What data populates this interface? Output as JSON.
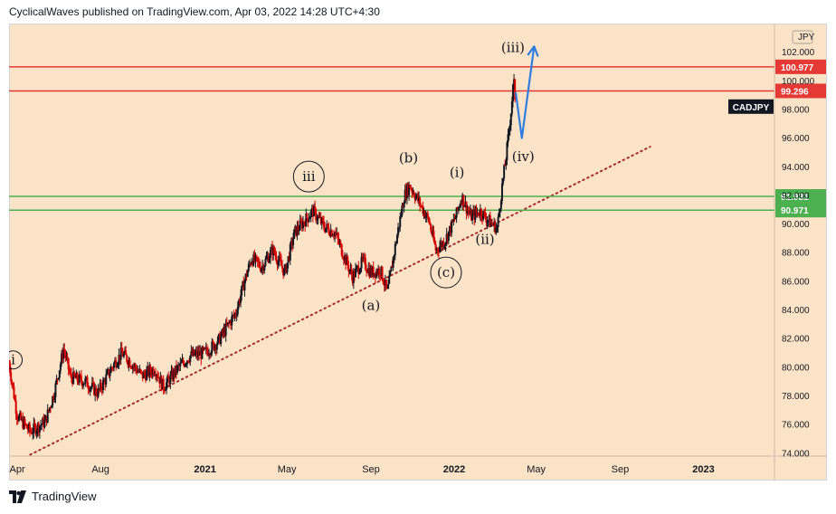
{
  "header": {
    "attribution": "CyclicalWaves published on TradingView.com, Apr 03, 2022 14:28 UTC+4:30"
  },
  "footer": {
    "brand": "TradingView"
  },
  "colors": {
    "background": "#fbe3c7",
    "red_line": "#e53935",
    "green_line": "#4caf50",
    "trend_line": "#a52a2a",
    "projection": "#2f7de1",
    "candle": "#131722",
    "candle_down": "#d50000"
  },
  "chart_data": {
    "type": "candlestick",
    "symbol": "CADJPY",
    "currency": "JPY",
    "y_ticks": [
      74,
      76,
      78,
      80,
      82,
      84,
      86,
      88,
      90,
      92,
      94,
      96,
      98,
      100,
      102
    ],
    "y_tick_labels": [
      "74.000",
      "76.000",
      "78.000",
      "80.000",
      "82.000",
      "84.000",
      "86.000",
      "88.000",
      "90.000",
      "92.000",
      "94.000",
      "96.000",
      "98.000",
      "100.000",
      "102.000"
    ],
    "ylim": [
      73.8,
      104.0
    ],
    "xlim": [
      "2020-03-20",
      "2023-04-15"
    ],
    "x_ticks": [
      {
        "label": "Apr",
        "date": "2020-04-01",
        "bold": false
      },
      {
        "label": "Aug",
        "date": "2020-08-01",
        "bold": false
      },
      {
        "label": "2021",
        "date": "2021-01-01",
        "bold": true
      },
      {
        "label": "May",
        "date": "2021-05-01",
        "bold": false
      },
      {
        "label": "Sep",
        "date": "2021-09-01",
        "bold": false
      },
      {
        "label": "2022",
        "date": "2022-01-01",
        "bold": true
      },
      {
        "label": "May",
        "date": "2022-05-01",
        "bold": false
      },
      {
        "label": "Sep",
        "date": "2022-09-01",
        "bold": false
      },
      {
        "label": "2023",
        "date": "2023-01-01",
        "bold": true
      }
    ],
    "horizontal_levels": [
      {
        "value": 100.977,
        "label": "100.977",
        "color": "#e53935"
      },
      {
        "value": 99.296,
        "label": "99.296",
        "color": "#e53935"
      },
      {
        "value": 91.931,
        "label": "91.931",
        "color": "#4caf50"
      },
      {
        "value": 90.971,
        "label": "90.971",
        "color": "#4caf50"
      }
    ],
    "trend_line": {
      "start": [
        "2020-04-20",
        73.9
      ],
      "end": [
        "2022-10-15",
        95.4
      ],
      "style": "dotted"
    },
    "price_path": [
      [
        "2020-03-20",
        80.3
      ],
      [
        "2020-04-01",
        76.6
      ],
      [
        "2020-04-20",
        75.5
      ],
      [
        "2020-05-12",
        76.2
      ],
      [
        "2020-05-25",
        78.2
      ],
      [
        "2020-06-08",
        81.3
      ],
      [
        "2020-06-18",
        79.3
      ],
      [
        "2020-07-10",
        79.0
      ],
      [
        "2020-07-28",
        78.2
      ],
      [
        "2020-08-20",
        80.2
      ],
      [
        "2020-09-01",
        81.0
      ],
      [
        "2020-09-15",
        80.3
      ],
      [
        "2020-10-01",
        79.4
      ],
      [
        "2020-10-20",
        79.9
      ],
      [
        "2020-11-01",
        78.6
      ],
      [
        "2020-11-20",
        79.8
      ],
      [
        "2020-12-10",
        80.8
      ],
      [
        "2021-01-01",
        81.0
      ],
      [
        "2021-01-20",
        81.8
      ],
      [
        "2021-02-15",
        83.8
      ],
      [
        "2021-03-01",
        86.2
      ],
      [
        "2021-03-10",
        87.6
      ],
      [
        "2021-03-25",
        87.0
      ],
      [
        "2021-04-10",
        88.2
      ],
      [
        "2021-04-28",
        86.6
      ],
      [
        "2021-05-12",
        89.4
      ],
      [
        "2021-05-28",
        90.3
      ],
      [
        "2021-06-08",
        90.9
      ],
      [
        "2021-06-25",
        89.8
      ],
      [
        "2021-07-10",
        89.4
      ],
      [
        "2021-07-25",
        87.6
      ],
      [
        "2021-08-05",
        86.3
      ],
      [
        "2021-08-20",
        87.4
      ],
      [
        "2021-09-01",
        86.6
      ],
      [
        "2021-09-15",
        86.8
      ],
      [
        "2021-09-25",
        85.2
      ],
      [
        "2021-10-10",
        89.4
      ],
      [
        "2021-10-20",
        92.0
      ],
      [
        "2021-10-28",
        92.7
      ],
      [
        "2021-11-12",
        91.4
      ],
      [
        "2021-11-25",
        90.2
      ],
      [
        "2021-12-05",
        88.2
      ],
      [
        "2021-12-18",
        88.8
      ],
      [
        "2022-01-03",
        90.5
      ],
      [
        "2022-01-12",
        91.9
      ],
      [
        "2022-01-25",
        90.5
      ],
      [
        "2022-02-08",
        90.9
      ],
      [
        "2022-02-25",
        90.0
      ],
      [
        "2022-03-05",
        89.7
      ],
      [
        "2022-03-12",
        92.6
      ],
      [
        "2022-03-18",
        94.7
      ],
      [
        "2022-03-25",
        97.8
      ],
      [
        "2022-03-29",
        100.0
      ],
      [
        "2022-04-01",
        98.3
      ]
    ],
    "projection_path": [
      [
        "2022-04-01",
        99.2
      ],
      [
        "2022-04-10",
        96.0
      ],
      [
        "2022-04-28",
        102.4
      ]
    ],
    "wave_labels": [
      {
        "text": "i",
        "date": "2020-03-26",
        "value": 80.2,
        "circled": true
      },
      {
        "text": "iii",
        "date": "2021-06-02",
        "value": 93.0,
        "circled": true
      },
      {
        "text": "(a)",
        "date": "2021-09-01",
        "value": 84.0,
        "circled": false
      },
      {
        "text": "(b)",
        "date": "2021-10-26",
        "value": 94.3,
        "circled": false
      },
      {
        "text": "(c)",
        "date": "2021-12-20",
        "value": 86.3,
        "circled": true
      },
      {
        "text": "(i)",
        "date": "2022-01-05",
        "value": 93.3,
        "circled": false
      },
      {
        "text": "(ii)",
        "date": "2022-02-15",
        "value": 88.6,
        "circled": false
      },
      {
        "text": "(iii)",
        "date": "2022-03-28",
        "value": 102.0,
        "circled": false
      },
      {
        "text": "(iv)",
        "date": "2022-04-12",
        "value": 94.4,
        "circled": false
      }
    ]
  }
}
